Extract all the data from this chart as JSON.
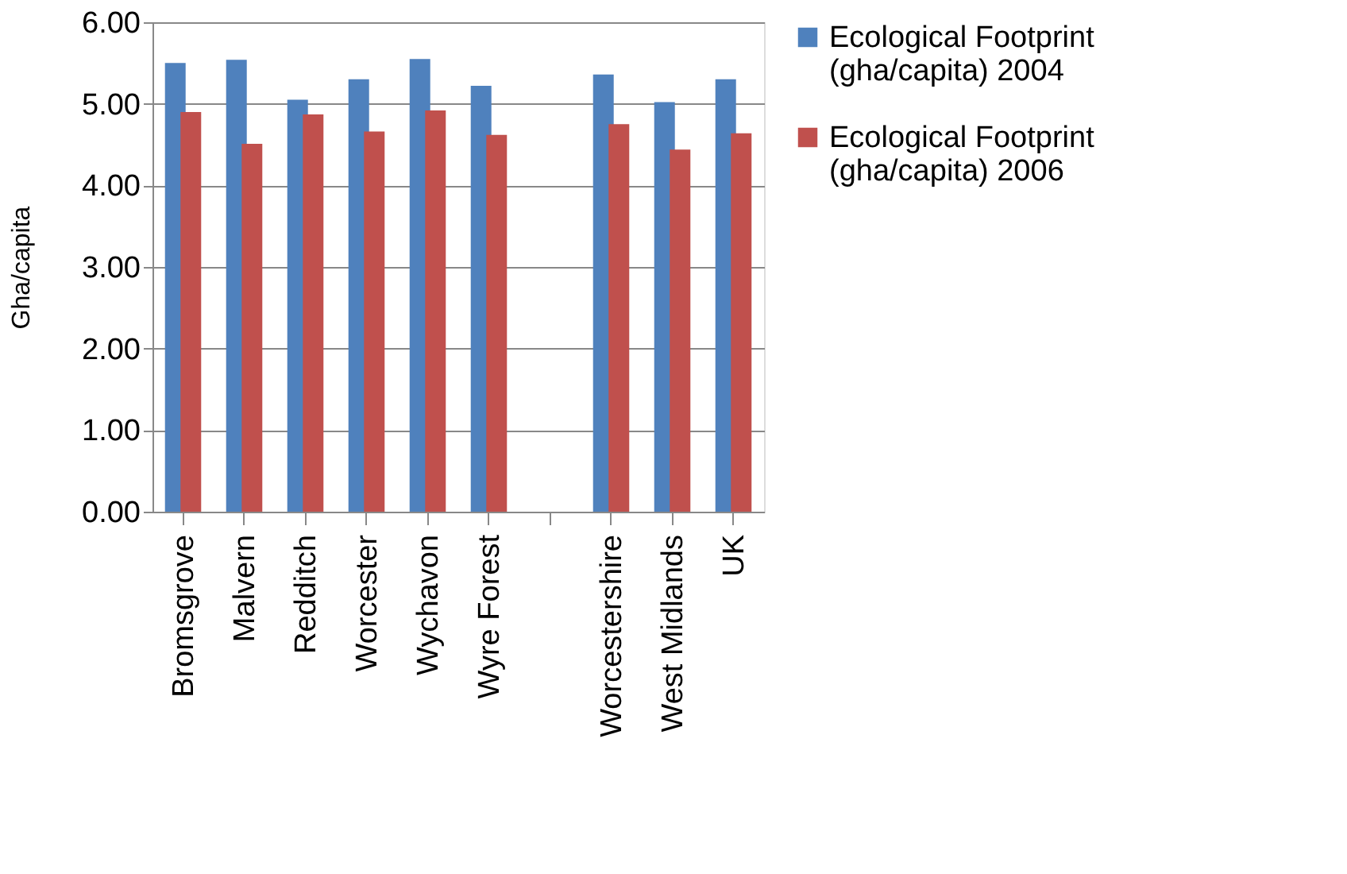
{
  "chart_data": {
    "type": "bar",
    "ylabel": "Gha/capita",
    "categories": [
      "Bromsgrove",
      "Malvern",
      "Redditch",
      "Worcester",
      "Wychavon",
      "Wyre Forest",
      null,
      "Worcestershire",
      "West Midlands",
      "UK"
    ],
    "series": [
      {
        "name": "Ecological Footprint (gha/capita) 2004",
        "color": "#4f81bd",
        "values": [
          5.5,
          5.54,
          5.05,
          5.3,
          5.55,
          5.22,
          null,
          5.36,
          5.02,
          5.3
        ]
      },
      {
        "name": "Ecological Footprint (gha/capita) 2006",
        "color": "#c0504d",
        "values": [
          4.9,
          4.51,
          4.87,
          4.66,
          4.92,
          4.62,
          null,
          4.75,
          4.44,
          4.64
        ]
      }
    ],
    "ylim": [
      0,
      6
    ],
    "yticks": [
      {
        "value": 0,
        "label": "0.00"
      },
      {
        "value": 1,
        "label": "1.00"
      },
      {
        "value": 2,
        "label": "2.00"
      },
      {
        "value": 3,
        "label": "3.00"
      },
      {
        "value": 4,
        "label": "4.00"
      },
      {
        "value": 5,
        "label": "5.00"
      },
      {
        "value": 6,
        "label": "6.00"
      }
    ],
    "grid": "y",
    "legend": "right"
  }
}
